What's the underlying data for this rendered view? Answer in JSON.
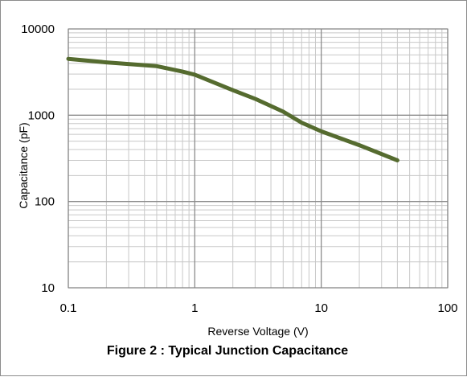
{
  "chart_data": {
    "type": "line",
    "xscale": "log",
    "yscale": "log",
    "xlim": [
      0.1,
      100
    ],
    "ylim": [
      10,
      10000
    ],
    "grid": true,
    "xlabel": "Reverse Voltage (V)",
    "ylabel": "Capacitance (pF)",
    "caption": "Figure 2 : Typical Junction Capacitance",
    "x_ticks": [
      "0.1",
      "1",
      "10",
      "100"
    ],
    "y_ticks": [
      "10",
      "100",
      "1000",
      "10000"
    ],
    "line_color": "#556b2f",
    "series": [
      {
        "x": [
          0.1,
          0.2,
          0.5,
          0.8,
          1,
          2,
          3,
          5,
          7,
          10,
          20,
          40
        ],
        "y": [
          4500,
          4100,
          3700,
          3200,
          2950,
          1950,
          1550,
          1100,
          820,
          650,
          450,
          300
        ]
      }
    ]
  }
}
